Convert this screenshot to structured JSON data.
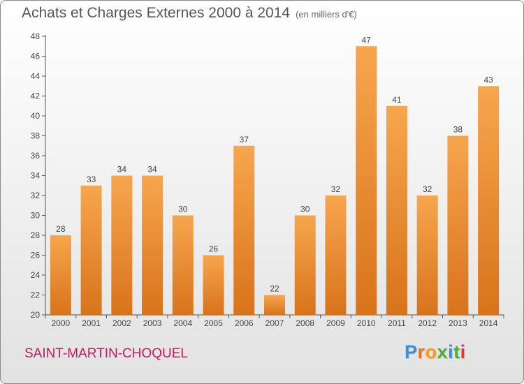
{
  "header": {
    "title": "Achats et Charges Externes 2000 à 2014",
    "subtitle": "(en milliers d'€)"
  },
  "footer": {
    "location": "SAINT-MARTIN-CHOQUEL",
    "logo": "Proxiti"
  },
  "colors": {
    "bar_top": "#f7a64e",
    "bar_bottom": "#d8731b",
    "location_text": "#c8175f",
    "logo_letters": [
      "#3c8fd5",
      "#e8731e",
      "#ff9a1c",
      "#4caf34",
      "#3c8fd5",
      "#4caf34",
      "#e23b2e"
    ]
  },
  "chart_data": {
    "type": "bar",
    "title": "Achats et Charges Externes 2000 à 2014",
    "subtitle": "(en milliers d'€)",
    "categories": [
      "2000",
      "2001",
      "2002",
      "2003",
      "2004",
      "2005",
      "2006",
      "2007",
      "2008",
      "2009",
      "2010",
      "2011",
      "2012",
      "2013",
      "2014"
    ],
    "values": [
      28,
      33,
      34,
      34,
      30,
      26,
      37,
      22,
      30,
      32,
      47,
      41,
      32,
      38,
      43
    ],
    "ylim": [
      20,
      48
    ],
    "yticks": [
      20,
      22,
      24,
      26,
      28,
      30,
      32,
      34,
      36,
      38,
      40,
      42,
      44,
      46,
      48
    ],
    "grid": false,
    "data_labels": true
  }
}
